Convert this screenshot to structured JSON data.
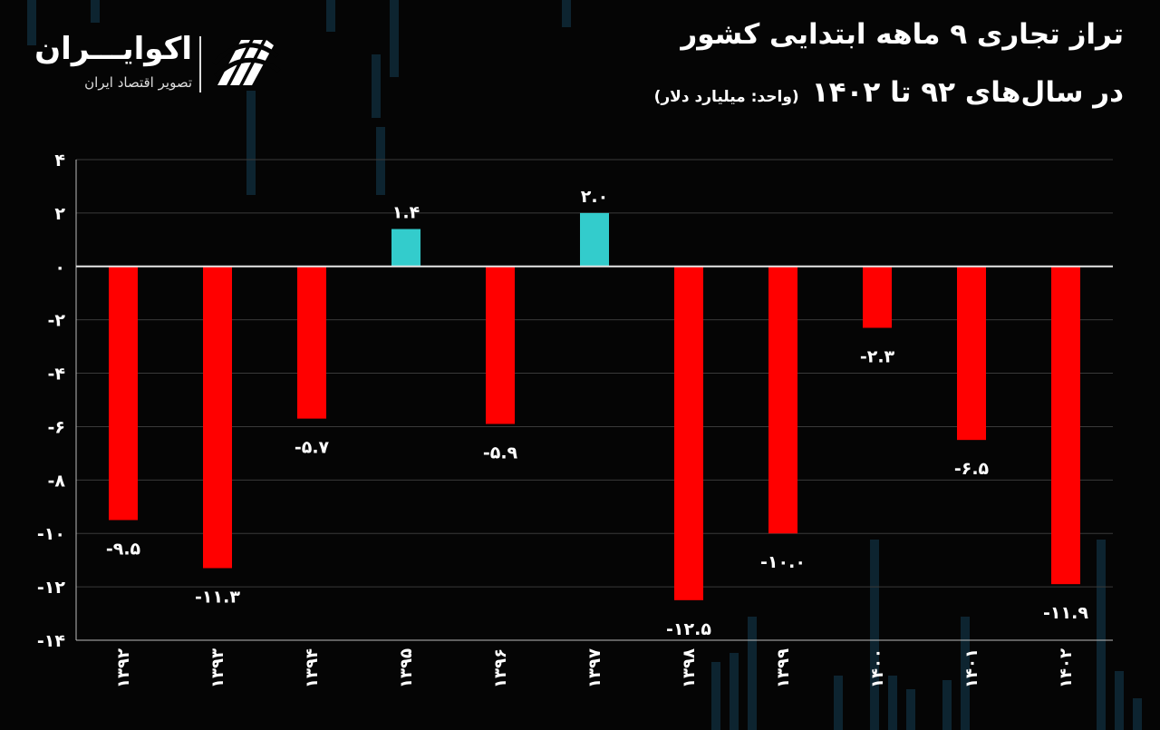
{
  "brand": {
    "name": "اکوایـــران",
    "tagline": "تصویر اقتصاد ایران"
  },
  "title": {
    "line1": "تراز تجاری ۹ ماهه ابتدایی کشور",
    "line2": "در سال‌های ۹۲ تا ۱۴۰۲",
    "unit": "(واحد: میلیارد دلار)"
  },
  "colors": {
    "negative": "#ff0000",
    "positive": "#33cccc",
    "background": "#050505"
  },
  "chart_data": {
    "type": "bar",
    "categories": [
      "۱۳۹۲",
      "۱۳۹۳",
      "۱۳۹۴",
      "۱۳۹۵",
      "۱۳۹۶",
      "۱۳۹۷",
      "۱۳۹۸",
      "۱۳۹۹",
      "۱۴۰۰",
      "۱۴۰۱",
      "۱۴۰۲"
    ],
    "values": [
      -9.5,
      -11.3,
      -5.7,
      1.4,
      -5.9,
      2.0,
      -12.5,
      -10.0,
      -2.3,
      -6.5,
      -11.9
    ],
    "value_labels": [
      "-۹.۵",
      "-۱۱.۳",
      "-۵.۷",
      "۱.۴",
      "-۵.۹",
      "۲.۰",
      "-۱۲.۵",
      "-۱۰.۰",
      "-۲.۳",
      "-۶.۵",
      "-۱۱.۹"
    ],
    "y_ticks": [
      4,
      2,
      0,
      -2,
      -4,
      -6,
      -8,
      -10,
      -12,
      -14
    ],
    "y_tick_labels": [
      "۴",
      "۲",
      "۰",
      "-۲",
      "-۴",
      "-۶",
      "-۸",
      "-۱۰",
      "-۱۲",
      "-۱۴"
    ],
    "ylim": [
      -14,
      4
    ],
    "grid": true,
    "xlabel": "",
    "ylabel": ""
  }
}
